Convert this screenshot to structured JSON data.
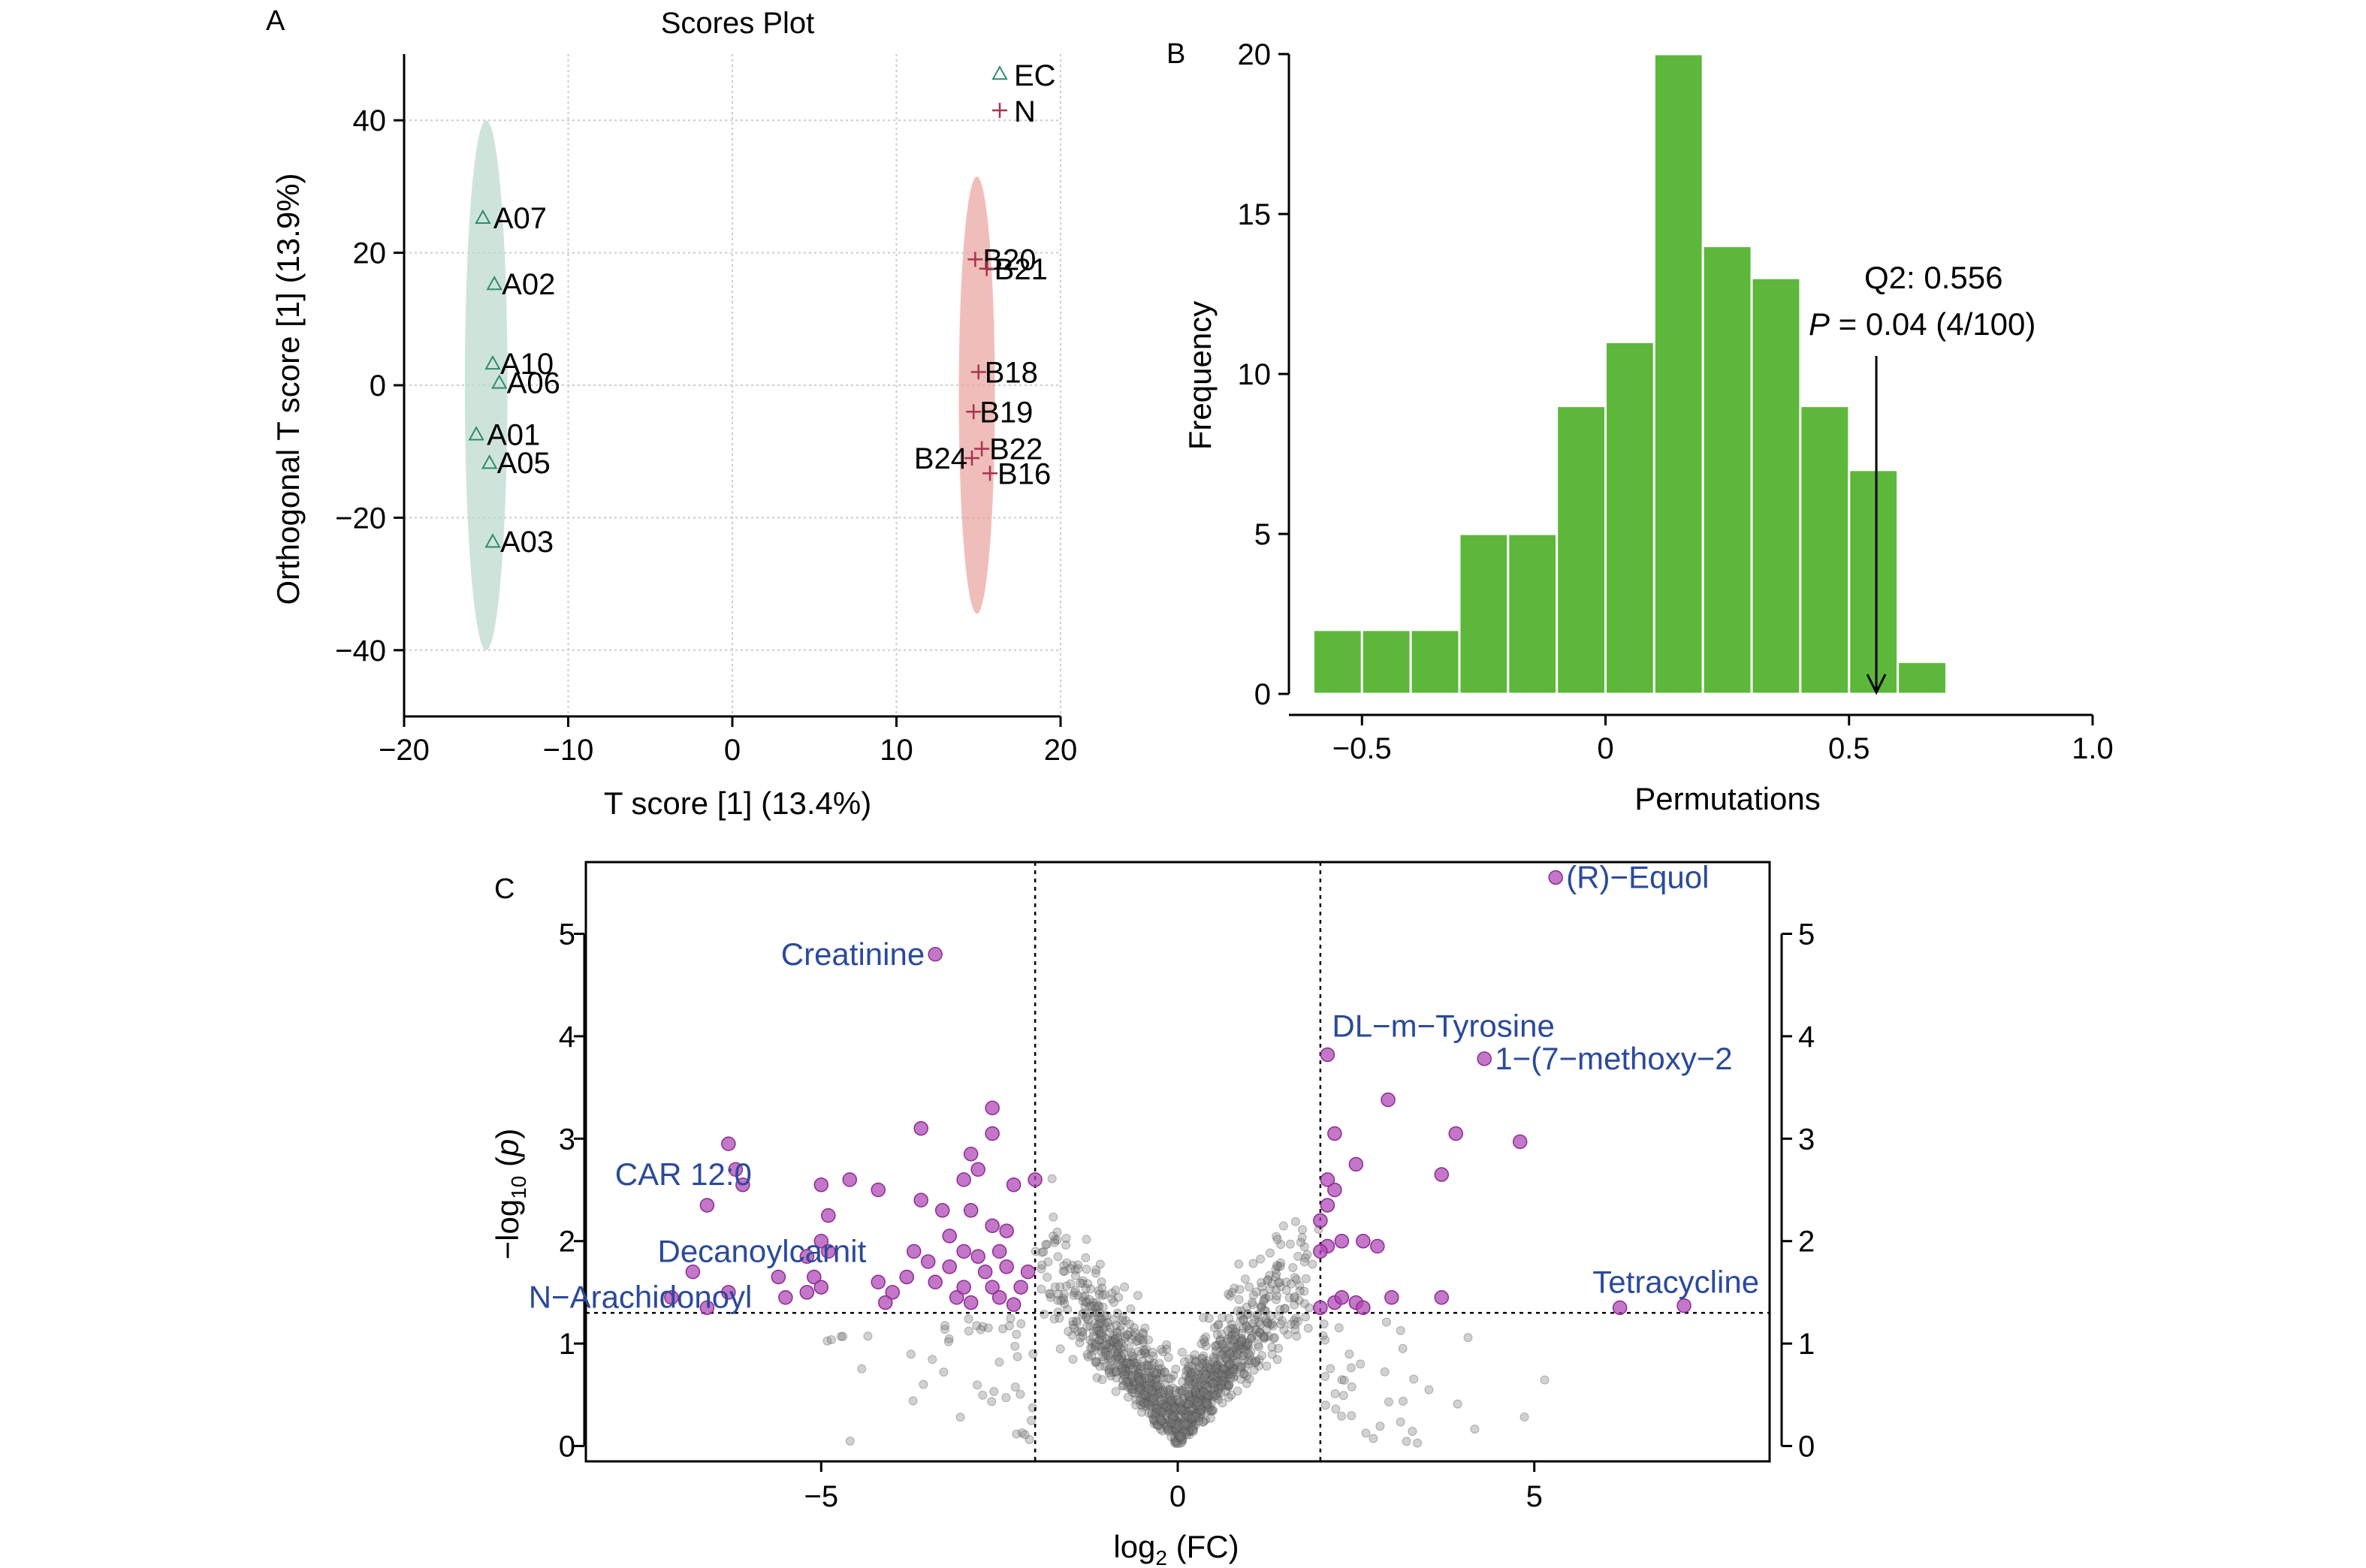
{
  "colors": {
    "group_a": "#2e8b6e",
    "group_a_ellipse": "#b9d8cc",
    "group_b": "#a8334f",
    "group_b_ellipse": "#e9a39c",
    "bar_fill": "#5db73b",
    "volcano_sig": "#b048b5",
    "volcano_ns": "#7a7a7a",
    "label_blue": "#2b4a9b",
    "axis": "#000000",
    "grid": "#cccccc"
  },
  "chart_data": [
    {
      "panel": "A",
      "type": "scatter",
      "title": "Scores Plot",
      "xlabel": "T score [1] (13.4%)",
      "ylabel": "Orthogonal T score [1] (13.9%)",
      "xlim": [
        -20,
        20
      ],
      "ylim": [
        -50,
        50
      ],
      "xticks": [
        -20,
        -10,
        0,
        10,
        20
      ],
      "yticks": [
        -40,
        -20,
        0,
        20,
        40
      ],
      "tick_labels_x": [
        "−20",
        "−10",
        "0",
        "10",
        "20"
      ],
      "tick_labels_y": [
        "−40",
        "−20",
        "0",
        "20",
        "40"
      ],
      "grid": true,
      "legend_position": "top-right",
      "legend": [
        {
          "name": "EC",
          "marker": "triangle",
          "color_key": "group_a"
        },
        {
          "name": "N",
          "marker": "plus",
          "color_key": "group_b"
        }
      ],
      "ellipses": [
        {
          "group": "EC",
          "cx": -15,
          "cy": 0,
          "rx": 1.3,
          "ry": 40
        },
        {
          "group": "N",
          "cx": 14.9,
          "cy": -1.5,
          "rx": 1.1,
          "ry": 33
        }
      ],
      "series": [
        {
          "name": "EC",
          "marker": "triangle",
          "points": [
            {
              "label": "A07",
              "x": -15.2,
              "y": 25.3
            },
            {
              "label": "A02",
              "x": -14.5,
              "y": 15.3
            },
            {
              "label": "A10",
              "x": -14.6,
              "y": 3.3
            },
            {
              "label": "A06",
              "x": -14.2,
              "y": 0.4
            },
            {
              "label": "A01",
              "x": -15.6,
              "y": -7.4
            },
            {
              "label": "A05",
              "x": -14.8,
              "y": -11.7
            },
            {
              "label": "A03",
              "x": -14.6,
              "y": -23.6
            }
          ]
        },
        {
          "name": "N",
          "marker": "plus",
          "points": [
            {
              "label": "B20",
              "x": 14.8,
              "y": 19.0
            },
            {
              "label": "B21",
              "x": 15.5,
              "y": 17.6
            },
            {
              "label": "B18",
              "x": 15.0,
              "y": 2.0
            },
            {
              "label": "B19",
              "x": 14.7,
              "y": -4.0
            },
            {
              "label": "B22",
              "x": 15.2,
              "y": -9.6
            },
            {
              "label": "B24",
              "x": 14.6,
              "y": -11.0
            },
            {
              "label": "B16",
              "x": 15.7,
              "y": -13.3
            }
          ]
        }
      ]
    },
    {
      "panel": "B",
      "type": "bar",
      "title": "",
      "xlabel": "Permutations",
      "ylabel": "Frequency",
      "xlim": [
        -0.65,
        1.0
      ],
      "ylim": [
        0,
        20
      ],
      "xticks": [
        -0.5,
        0,
        0.5,
        1.0
      ],
      "yticks": [
        0,
        5,
        10,
        15,
        20
      ],
      "tick_labels_x": [
        "−0.5",
        "0",
        "0.5",
        "1.0"
      ],
      "tick_labels_y": [
        "0",
        "5",
        "10",
        "15",
        "20"
      ],
      "bin_edges": [
        -0.6,
        -0.5,
        -0.4,
        -0.3,
        -0.2,
        -0.1,
        0.0,
        0.1,
        0.2,
        0.3,
        0.4,
        0.5,
        0.6,
        0.7
      ],
      "values": [
        2,
        2,
        2,
        5,
        5,
        9,
        11,
        20,
        14,
        13,
        9,
        7,
        1
      ],
      "annotation": {
        "line1": "Q2: 0.556",
        "line2_italic": "P",
        "line2_rest": " = 0.04 (4/100)",
        "arrow_x": 0.556
      }
    },
    {
      "panel": "C",
      "type": "scatter",
      "title": "",
      "xlabel_main": "log",
      "xlabel_sub": "2",
      "xlabel_rest": " (FC)",
      "ylabel_prefix": "−log",
      "ylabel_sub": "10",
      "ylabel_open": " (",
      "ylabel_var": "p",
      "ylabel_close": ")",
      "xlim": [
        -8.3,
        8.3
      ],
      "ylim": [
        -0.15,
        5.7
      ],
      "xticks": [
        -5,
        0,
        5
      ],
      "yticks": [
        0,
        1,
        2,
        3,
        4,
        5
      ],
      "tick_labels_x": [
        "−5",
        "0",
        "5"
      ],
      "tick_labels_y": [
        "0",
        "1",
        "2",
        "3",
        "4",
        "5"
      ],
      "threshold_x": [
        -2,
        2
      ],
      "threshold_y": 1.3,
      "significant_points": [
        [
          -3.4,
          4.8
        ],
        [
          5.3,
          5.55
        ],
        [
          2.1,
          3.82
        ],
        [
          4.3,
          3.78
        ],
        [
          -6.3,
          2.95
        ],
        [
          -6.2,
          2.7
        ],
        [
          -6.1,
          2.55
        ],
        [
          -6.6,
          2.35
        ],
        [
          -5.0,
          2.55
        ],
        [
          -4.6,
          2.6
        ],
        [
          -4.2,
          2.5
        ],
        [
          -3.6,
          3.1
        ],
        [
          -2.6,
          3.3
        ],
        [
          -2.6,
          3.05
        ],
        [
          -2.9,
          2.85
        ],
        [
          -2.8,
          2.7
        ],
        [
          -3.0,
          2.6
        ],
        [
          -3.6,
          2.4
        ],
        [
          -3.3,
          2.3
        ],
        [
          -2.9,
          2.3
        ],
        [
          -2.3,
          2.55
        ],
        [
          -2.0,
          2.6
        ],
        [
          -4.9,
          2.25
        ],
        [
          -5.0,
          2.0
        ],
        [
          -4.9,
          1.9
        ],
        [
          -5.2,
          1.85
        ],
        [
          -5.1,
          1.65
        ],
        [
          -5.0,
          1.55
        ],
        [
          -5.6,
          1.65
        ],
        [
          -5.5,
          1.45
        ],
        [
          -5.2,
          1.5
        ],
        [
          -4.2,
          1.6
        ],
        [
          -4.0,
          1.5
        ],
        [
          -4.1,
          1.4
        ],
        [
          -3.7,
          1.9
        ],
        [
          -3.5,
          1.8
        ],
        [
          -3.8,
          1.65
        ],
        [
          -3.4,
          1.6
        ],
        [
          -3.2,
          1.75
        ],
        [
          -3.0,
          1.9
        ],
        [
          -3.2,
          2.05
        ],
        [
          -2.8,
          1.85
        ],
        [
          -2.7,
          1.7
        ],
        [
          -2.5,
          1.9
        ],
        [
          -2.4,
          1.75
        ],
        [
          -2.6,
          1.55
        ],
        [
          -2.2,
          1.55
        ],
        [
          -2.1,
          1.7
        ],
        [
          -3.1,
          1.45
        ],
        [
          -2.9,
          1.4
        ],
        [
          -2.5,
          1.45
        ],
        [
          -2.3,
          1.38
        ],
        [
          -3.0,
          1.55
        ],
        [
          -2.4,
          2.1
        ],
        [
          -2.6,
          2.15
        ],
        [
          -6.3,
          1.5
        ],
        [
          -6.6,
          1.35
        ],
        [
          -7.1,
          1.45
        ],
        [
          -6.8,
          1.7
        ],
        [
          2.2,
          3.05
        ],
        [
          2.5,
          2.75
        ],
        [
          2.2,
          2.5
        ],
        [
          2.1,
          2.35
        ],
        [
          2.0,
          2.2
        ],
        [
          2.3,
          2.0
        ],
        [
          2.1,
          1.95
        ],
        [
          2.0,
          1.9
        ],
        [
          2.6,
          2.0
        ],
        [
          2.8,
          1.95
        ],
        [
          2.2,
          1.4
        ],
        [
          2.0,
          1.35
        ],
        [
          2.5,
          1.4
        ],
        [
          2.6,
          1.35
        ],
        [
          2.3,
          1.45
        ],
        [
          3.0,
          1.45
        ],
        [
          3.7,
          1.45
        ],
        [
          2.95,
          3.38
        ],
        [
          3.9,
          3.05
        ],
        [
          4.8,
          2.97
        ],
        [
          3.7,
          2.65
        ],
        [
          6.2,
          1.35
        ],
        [
          7.1,
          1.37
        ],
        [
          2.1,
          2.6
        ]
      ],
      "labels": [
        {
          "text": "Creatinine",
          "x": -3.4,
          "y": 4.8,
          "anchor": "end",
          "dx": -14
        },
        {
          "text": "(R)−Equol",
          "x": 5.3,
          "y": 5.55,
          "anchor": "start",
          "dx": 14
        },
        {
          "text": "DL−m−Tyrosine",
          "x": 2.1,
          "y": 4.1,
          "anchor": "start",
          "dx": 6
        },
        {
          "text": "1−(7−methoxy−2",
          "x": 4.3,
          "y": 3.78,
          "anchor": "start",
          "dx": 14
        },
        {
          "text": "CAR 12:0",
          "x": -6.1,
          "y": 2.65,
          "anchor": "end",
          "dx": 12
        },
        {
          "text": "Decanoylcarnit",
          "x": -5.0,
          "y": 1.9,
          "anchor": "end",
          "dx": 60
        },
        {
          "text": "N−Arachidonoyl",
          "x": -6.6,
          "y": 1.45,
          "anchor": "end",
          "dx": 60
        },
        {
          "text": "Tetracycline",
          "x": 7.1,
          "y": 1.6,
          "anchor": "end",
          "dx": 100
        }
      ]
    }
  ],
  "panel_letters": {
    "a": "A",
    "b": "B",
    "c": "C"
  }
}
